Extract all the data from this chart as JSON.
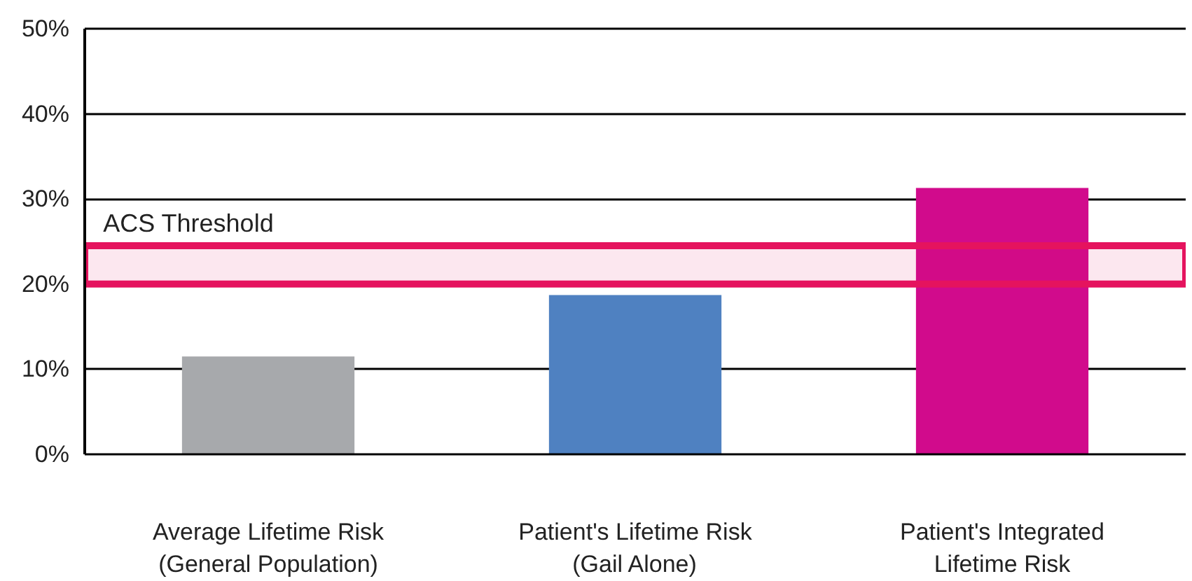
{
  "chart_data": {
    "type": "bar",
    "categories": [
      "Average Lifetime Risk\n(General Population)",
      "Patient's Lifetime Risk\n(Gail Alone)",
      "Patient's Integrated\nLifetime Risk"
    ],
    "values": [
      11.5,
      18.7,
      31.3
    ],
    "colors": [
      "#a7a9ac",
      "#4f81c1",
      "#d10b8c"
    ],
    "ylim": [
      0,
      50
    ],
    "yticks": [
      {
        "value": 0,
        "label": "0%"
      },
      {
        "value": 10,
        "label": "10%"
      },
      {
        "value": 20,
        "label": "20%"
      },
      {
        "value": 30,
        "label": "30%"
      },
      {
        "value": 40,
        "label": "40%"
      },
      {
        "value": 50,
        "label": "50%"
      }
    ],
    "grid": "y",
    "bands": [
      {
        "axis": "y",
        "from": 20,
        "to": 24.5,
        "label": "ACS Threshold",
        "color": "#e5135e"
      }
    ]
  }
}
